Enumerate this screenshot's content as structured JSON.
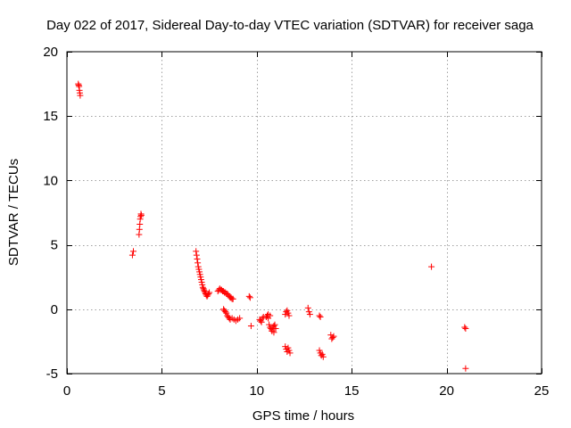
{
  "chart_data": {
    "type": "scatter",
    "title": "Day 022 of 2017, Sidereal Day-to-day VTEC variation (SDTVAR) for receiver saga",
    "xlabel": "GPS time / hours",
    "ylabel": "SDTVAR / TECUs",
    "xlim": [
      0,
      25
    ],
    "ylim": [
      -5,
      20
    ],
    "xticks": [
      0,
      5,
      10,
      15,
      20,
      25
    ],
    "yticks": [
      -5,
      0,
      5,
      10,
      15,
      20
    ],
    "grid": true,
    "marker": "plus",
    "color": "#ff0000",
    "x": [
      0.6,
      0.62,
      0.64,
      0.66,
      0.68,
      0.7,
      3.45,
      3.5,
      3.8,
      3.82,
      3.84,
      3.86,
      3.88,
      3.9,
      3.92,
      6.8,
      6.83,
      6.86,
      6.89,
      6.92,
      6.95,
      6.98,
      7.01,
      7.04,
      7.07,
      7.1,
      7.13,
      7.16,
      7.19,
      7.22,
      7.25,
      7.28,
      7.31,
      7.34,
      7.38,
      7.42,
      7.46,
      7.5,
      7.95,
      8.0,
      8.05,
      8.1,
      8.15,
      8.2,
      8.25,
      8.3,
      8.35,
      8.4,
      8.45,
      8.5,
      8.55,
      8.6,
      8.65,
      8.7,
      8.75,
      8.25,
      8.3,
      8.35,
      8.4,
      8.45,
      8.5,
      8.55,
      8.6,
      8.7,
      8.8,
      8.9,
      9.0,
      9.1,
      9.6,
      9.65,
      9.7,
      10.15,
      10.2,
      10.25,
      10.3,
      10.35,
      10.5,
      10.55,
      10.6,
      10.65,
      10.7,
      10.75,
      10.8,
      10.85,
      10.9,
      10.95,
      11.0,
      10.6,
      10.7,
      10.8,
      10.9,
      11.5,
      11.55,
      11.6,
      11.65,
      11.7,
      11.75,
      11.5,
      11.55,
      11.6,
      11.65,
      11.7,
      12.7,
      12.75,
      12.8,
      13.3,
      13.35,
      13.3,
      13.35,
      13.4,
      13.45,
      13.5,
      13.9,
      13.95,
      14.0,
      14.05,
      19.2,
      20.95,
      21.0,
      21.0
    ],
    "y": [
      17.5,
      17.4,
      17.3,
      17.0,
      16.8,
      16.6,
      4.2,
      4.5,
      5.8,
      6.2,
      6.6,
      7.0,
      7.2,
      7.4,
      7.3,
      4.5,
      4.2,
      3.9,
      3.6,
      3.3,
      3.1,
      2.9,
      2.7,
      2.5,
      2.3,
      2.1,
      1.9,
      1.7,
      1.6,
      1.5,
      1.4,
      1.3,
      1.2,
      1.1,
      1.0,
      1.1,
      1.2,
      1.3,
      1.4,
      1.5,
      1.6,
      1.5,
      1.5,
      1.4,
      1.4,
      1.3,
      1.3,
      1.2,
      1.2,
      1.1,
      1.0,
      0.9,
      0.9,
      0.8,
      0.8,
      0.0,
      -0.1,
      -0.2,
      -0.3,
      -0.5,
      -0.6,
      -0.7,
      -0.8,
      -0.7,
      -0.8,
      -0.9,
      -0.8,
      -0.7,
      1.0,
      0.9,
      -1.3,
      -0.8,
      -0.9,
      -1.0,
      -0.7,
      -0.6,
      -0.6,
      -0.5,
      -0.7,
      -1.2,
      -1.4,
      -1.5,
      -1.6,
      -1.4,
      -1.3,
      -1.2,
      -1.5,
      -0.4,
      -0.5,
      -1.7,
      -1.8,
      -2.9,
      -3.1,
      -3.3,
      -3.0,
      -3.2,
      -3.4,
      -0.4,
      -0.2,
      -0.1,
      -0.3,
      -0.5,
      0.1,
      -0.2,
      -0.4,
      -0.5,
      -0.6,
      -3.2,
      -3.4,
      -3.6,
      -3.5,
      -3.7,
      -2.0,
      -2.3,
      -2.2,
      -2.1,
      3.3,
      -1.4,
      -1.5,
      -4.6
    ]
  }
}
